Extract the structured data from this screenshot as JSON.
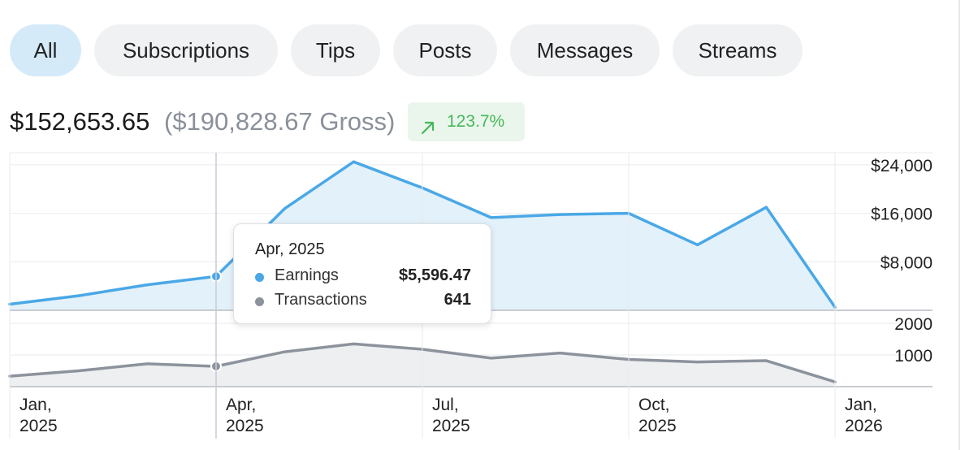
{
  "filters": [
    {
      "label": "All",
      "active": true
    },
    {
      "label": "Subscriptions",
      "active": false
    },
    {
      "label": "Tips",
      "active": false
    },
    {
      "label": "Posts",
      "active": false
    },
    {
      "label": "Messages",
      "active": false
    },
    {
      "label": "Streams",
      "active": false
    }
  ],
  "summary": {
    "net": "$152,653.65",
    "gross": "($190,828.67 Gross)",
    "change": "123.7%",
    "change_direction": "up"
  },
  "colors": {
    "earnings": "#4aa8e6",
    "earnings_fill": "#e3f1fa",
    "transactions": "#8c939c",
    "transactions_fill": "#eeeff1",
    "positive": "#46b85a",
    "active_tab": "#d5eaf9"
  },
  "chart_data": [
    {
      "type": "area",
      "x": [
        "2025-01-01",
        "2025-02-01",
        "2025-03-01",
        "2025-04-01",
        "2025-05-01",
        "2025-06-01",
        "2025-07-01",
        "2025-08-01",
        "2025-09-01",
        "2025-10-01",
        "2025-11-01",
        "2025-12-01",
        "2026-01-01"
      ],
      "series": [
        {
          "name": "Earnings",
          "values": [
            1000,
            2400,
            4200,
            5596.47,
            16800,
            24500,
            20200,
            15300,
            15800,
            16000,
            10800,
            17000,
            500
          ]
        }
      ],
      "ylim": [
        0,
        26000
      ],
      "yticks": [
        "$8,000",
        "$16,000",
        "$24,000"
      ],
      "ytick_values": [
        8000,
        16000,
        24000
      ],
      "grid": true
    },
    {
      "type": "area",
      "x": [
        "2025-01-01",
        "2025-02-01",
        "2025-03-01",
        "2025-04-01",
        "2025-05-01",
        "2025-06-01",
        "2025-07-01",
        "2025-08-01",
        "2025-09-01",
        "2025-10-01",
        "2025-11-01",
        "2025-12-01",
        "2026-01-01"
      ],
      "series": [
        {
          "name": "Transactions",
          "values": [
            330,
            500,
            720,
            641,
            1100,
            1350,
            1180,
            900,
            1060,
            860,
            780,
            820,
            150
          ]
        }
      ],
      "ylim": [
        0,
        2000
      ],
      "yticks": [
        "1000",
        "2000"
      ],
      "ytick_values": [
        1000,
        2000
      ],
      "grid": true
    }
  ],
  "x_axis": {
    "ticks": [
      {
        "line1": "Jan,",
        "line2": "2025"
      },
      {
        "line1": "Apr,",
        "line2": "2025"
      },
      {
        "line1": "Jul,",
        "line2": "2025"
      },
      {
        "line1": "Oct,",
        "line2": "2025"
      },
      {
        "line1": "Jan,",
        "line2": "2026"
      }
    ]
  },
  "tooltip": {
    "title": "Apr, 2025",
    "rows": [
      {
        "label": "Earnings",
        "value": "$5,596.47",
        "color": "#4aa8e6"
      },
      {
        "label": "Transactions",
        "value": "641",
        "color": "#8c939c"
      }
    ]
  },
  "hover_index": 3
}
